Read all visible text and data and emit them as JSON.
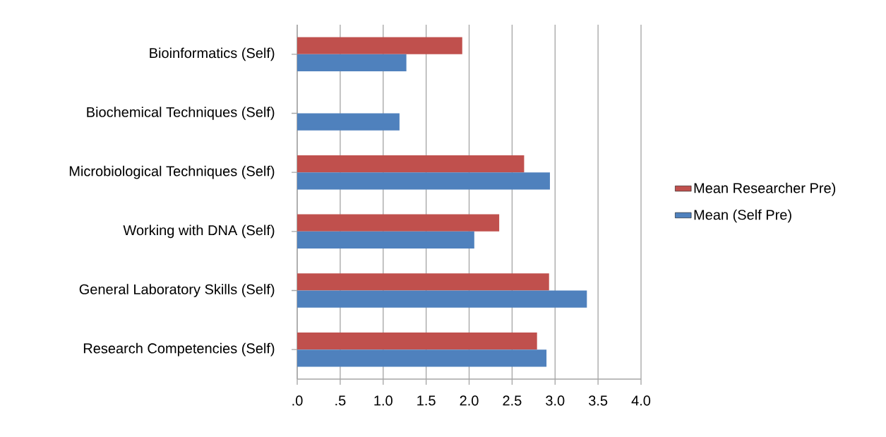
{
  "chart_data": {
    "type": "bar",
    "orientation": "horizontal",
    "categories": [
      "Bioinformatics (Self)",
      "Biochemical Techniques (Self)",
      "Microbiological Techniques (Self)",
      "Working with DNA (Self)",
      "General Laboratory Skills (Self)",
      "Research Competencies (Self)"
    ],
    "series": [
      {
        "name": "Mean Researcher Pre)",
        "color": "#c0504d",
        "values": [
          1.92,
          null,
          2.64,
          2.35,
          2.93,
          2.79
        ]
      },
      {
        "name": "Mean (Self Pre)",
        "color": "#4f81bd",
        "values": [
          1.27,
          1.19,
          2.94,
          2.06,
          3.37,
          2.9
        ]
      }
    ],
    "xlim": [
      0,
      4
    ],
    "xticks": [
      {
        "value": 0,
        "label": ".0"
      },
      {
        "value": 0.5,
        "label": ".5"
      },
      {
        "value": 1,
        "label": "1.0"
      },
      {
        "value": 1.5,
        "label": "1.5"
      },
      {
        "value": 2,
        "label": "2.0"
      },
      {
        "value": 2.5,
        "label": "2.5"
      },
      {
        "value": 3,
        "label": "3.0"
      },
      {
        "value": 3.5,
        "label": "3.5"
      },
      {
        "value": 4,
        "label": "4.0"
      }
    ],
    "grid": "x",
    "legend": "right"
  }
}
